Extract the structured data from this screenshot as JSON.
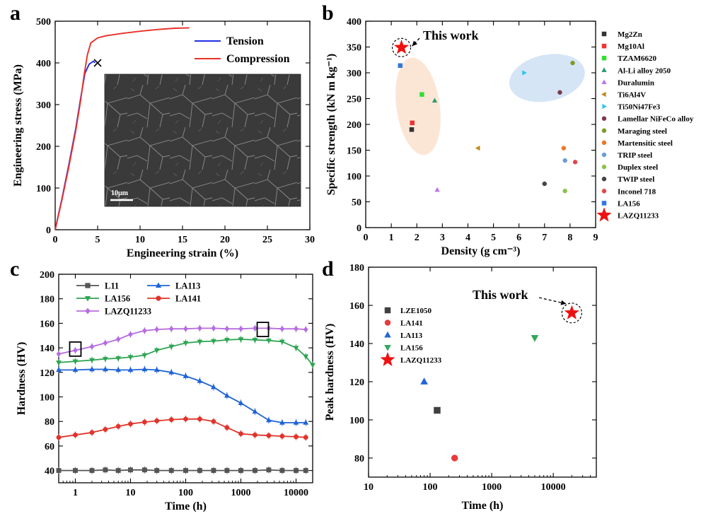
{
  "panels": {
    "a": "a",
    "b": "b",
    "c": "c",
    "d": "d"
  },
  "chart_data": [
    {
      "panel": "a",
      "type": "line",
      "xlabel": "Engineering strain (%)",
      "ylabel": "Engineering stress (MPa)",
      "xlim": [
        0,
        30
      ],
      "ylim": [
        0,
        500
      ],
      "xticks": [
        0,
        5,
        10,
        15,
        20,
        25,
        30
      ],
      "yticks": [
        0,
        100,
        200,
        300,
        400,
        500
      ],
      "legend_position": "top-right",
      "inset_scale_label": "10μm",
      "fracture_marker": {
        "x": 5.0,
        "y": 400
      },
      "series": [
        {
          "name": "Tension",
          "color": "#1f2ee8",
          "points": [
            [
              0,
              0
            ],
            [
              0.8,
              75
            ],
            [
              1.6,
              155
            ],
            [
              2.4,
              240
            ],
            [
              3.0,
              315
            ],
            [
              3.5,
              375
            ],
            [
              4.0,
              397
            ],
            [
              4.5,
              404
            ],
            [
              4.7,
              400
            ]
          ]
        },
        {
          "name": "Compression",
          "color": "#e8302a",
          "points": [
            [
              0,
              0
            ],
            [
              0.8,
              72
            ],
            [
              1.6,
              150
            ],
            [
              2.4,
              235
            ],
            [
              3.0,
              310
            ],
            [
              3.4,
              370
            ],
            [
              3.8,
              420
            ],
            [
              4.2,
              448
            ],
            [
              5.0,
              460
            ],
            [
              6,
              465
            ],
            [
              8,
              471
            ],
            [
              10,
              476
            ],
            [
              12,
              480
            ],
            [
              14,
              483
            ],
            [
              15.8,
              484
            ]
          ]
        }
      ]
    },
    {
      "panel": "b",
      "type": "scatter",
      "xlabel": "Density (g cm⁻³)",
      "ylabel": "Specific strength (kN m kg⁻¹)",
      "xlim": [
        0,
        9
      ],
      "ylim": [
        0,
        400
      ],
      "xticks": [
        0,
        1,
        2,
        3,
        4,
        5,
        6,
        7,
        8,
        9
      ],
      "yticks": [
        0,
        50,
        100,
        150,
        200,
        250,
        300,
        350,
        400
      ],
      "legend_position": "right-outside",
      "annotation": "This work",
      "series": [
        {
          "name": "Mg2Zn",
          "marker": "square",
          "color": "#333333",
          "x": 1.8,
          "y": 190
        },
        {
          "name": "Mg10Al",
          "marker": "square",
          "color": "#ee3333",
          "x": 1.82,
          "y": 203
        },
        {
          "name": "TZAM6620",
          "marker": "square",
          "color": "#33dd33",
          "x": 2.2,
          "y": 258
        },
        {
          "name": "Al-Li alloy 2050",
          "marker": "triangle-up",
          "color": "#2a9d6f",
          "x": 2.7,
          "y": 246
        },
        {
          "name": "Duralumin",
          "marker": "triangle-up",
          "color": "#bb77ee",
          "x": 2.8,
          "y": 73
        },
        {
          "name": "Ti6Al4V",
          "marker": "triangle-left",
          "color": "#c08a1a",
          "x": 4.4,
          "y": 154
        },
        {
          "name": "Ti50Ni47Fe3",
          "marker": "triangle-right",
          "color": "#33c6e8",
          "x": 6.2,
          "y": 300
        },
        {
          "name": "Lamellar NiFeCo alloy",
          "marker": "circle",
          "color": "#7a3b4a",
          "x": 7.6,
          "y": 262
        },
        {
          "name": "Maraging steel",
          "marker": "circle",
          "color": "#7d9b2a",
          "x": 8.1,
          "y": 319
        },
        {
          "name": "Martensitic steel",
          "marker": "circle",
          "color": "#ee7722",
          "x": 7.75,
          "y": 154
        },
        {
          "name": "TRIP steel",
          "marker": "circle",
          "color": "#6a9cd6",
          "x": 7.8,
          "y": 130
        },
        {
          "name": "Duplex steel",
          "marker": "circle",
          "color": "#8bc34a",
          "x": 7.8,
          "y": 71
        },
        {
          "name": "TWIP steel",
          "marker": "circle",
          "color": "#444444",
          "x": 7.0,
          "y": 85
        },
        {
          "name": "Inconel 718",
          "marker": "circle",
          "color": "#e04848",
          "x": 8.2,
          "y": 127
        },
        {
          "name": "LA156",
          "marker": "square",
          "color": "#3377dd",
          "x": 1.35,
          "y": 314
        },
        {
          "name": "LAZQ11233",
          "marker": "star",
          "color": "#ee1111",
          "x": 1.4,
          "y": 349
        }
      ]
    },
    {
      "panel": "c",
      "type": "line",
      "xscale": "log",
      "xlabel": "Time (h)",
      "ylabel": "Hardness (HV)",
      "xlim": [
        0.5,
        20000
      ],
      "ylim": [
        30,
        200
      ],
      "xticks": [
        1,
        10,
        100,
        1000,
        10000
      ],
      "yticks": [
        40,
        60,
        80,
        100,
        120,
        140,
        160,
        180,
        200
      ],
      "legend_position": "top-left",
      "series": [
        {
          "name": "L11",
          "marker": "square",
          "color": "#555555",
          "x": [
            0.5,
            1,
            2,
            3.5,
            6,
            10,
            18,
            30,
            55,
            100,
            180,
            320,
            560,
            1000,
            1800,
            3200,
            5600,
            10000,
            15000
          ],
          "y": [
            40,
            40,
            40,
            40.5,
            40,
            40.5,
            40.5,
            40,
            40,
            40,
            40,
            40,
            40,
            40,
            40,
            40.5,
            40,
            40,
            40
          ]
        },
        {
          "name": "LA113",
          "marker": "triangle-up",
          "color": "#1f64d6",
          "x": [
            0.5,
            1,
            2,
            3.5,
            6,
            10,
            18,
            30,
            55,
            100,
            180,
            320,
            560,
            1000,
            1800,
            3200,
            5600,
            10000,
            15000
          ],
          "y": [
            122,
            122,
            122.5,
            122.5,
            122,
            122,
            122.5,
            122,
            120,
            117,
            113,
            108,
            101,
            95,
            88,
            81,
            79,
            79,
            79
          ]
        },
        {
          "name": "LA156",
          "marker": "triangle-down",
          "color": "#2fa552",
          "x": [
            0.5,
            1,
            2,
            3.5,
            6,
            10,
            18,
            30,
            55,
            100,
            180,
            320,
            560,
            1000,
            1800,
            3200,
            5600,
            10000,
            15000,
            20000
          ],
          "y": [
            128,
            129,
            130,
            131,
            131.5,
            132.5,
            134,
            138,
            141,
            144,
            145,
            145.5,
            146.5,
            147,
            146.5,
            146,
            145,
            140,
            133,
            126
          ]
        },
        {
          "name": "LA141",
          "marker": "circle",
          "color": "#e0342b",
          "x": [
            0.5,
            1,
            2,
            3.5,
            6,
            10,
            18,
            30,
            55,
            100,
            180,
            320,
            560,
            1000,
            1800,
            3200,
            5600,
            10000,
            15000
          ],
          "y": [
            67,
            69,
            71,
            73.5,
            76,
            78,
            79.5,
            80.5,
            81.5,
            82,
            82,
            80,
            75,
            70,
            69,
            68.5,
            68,
            67.5,
            67
          ]
        },
        {
          "name": "LAZQ11233",
          "marker": "diamond",
          "color": "#b66ce0",
          "x": [
            0.5,
            1,
            2,
            3.5,
            6,
            10,
            18,
            30,
            55,
            100,
            180,
            320,
            560,
            1000,
            1800,
            3200,
            5600,
            10000,
            15000
          ],
          "y": [
            135,
            138,
            141,
            144,
            147,
            151,
            154,
            155,
            155.5,
            155.5,
            156,
            156,
            155.5,
            155.5,
            156,
            156,
            155.5,
            155.5,
            155
          ]
        }
      ],
      "highlight_boxes": [
        {
          "x": 1,
          "y": 139
        },
        {
          "x": 2500,
          "y": 155
        }
      ]
    },
    {
      "panel": "d",
      "type": "scatter",
      "xscale": "log",
      "xlabel": "Time (h)",
      "ylabel": "Peak hardness (HV)",
      "xlim": [
        10,
        50000
      ],
      "ylim": [
        70,
        180
      ],
      "xticks": [
        10,
        100,
        1000,
        10000
      ],
      "yticks": [
        80,
        100,
        120,
        140,
        160,
        180
      ],
      "legend_position": "top-left",
      "annotation": "This work",
      "series": [
        {
          "name": "LZE1050",
          "marker": "square",
          "color": "#404040",
          "x": 130,
          "y": 105
        },
        {
          "name": "LA141",
          "marker": "circle",
          "color": "#e83a3a",
          "x": 250,
          "y": 80
        },
        {
          "name": "LA113",
          "marker": "triangle-up",
          "color": "#2366d6",
          "x": 80,
          "y": 120
        },
        {
          "name": "LA156",
          "marker": "triangle-down",
          "color": "#33a85a",
          "x": 5000,
          "y": 143
        },
        {
          "name": "LAZQ11233",
          "marker": "star",
          "color": "#ee1111",
          "x": 20000,
          "y": 156
        }
      ]
    }
  ]
}
